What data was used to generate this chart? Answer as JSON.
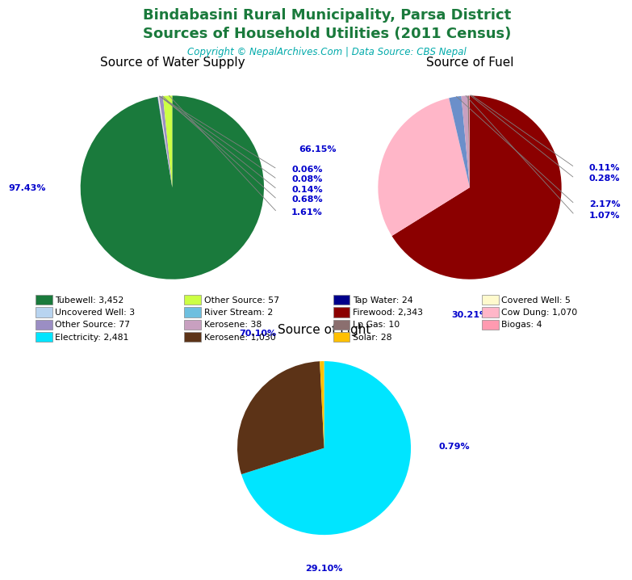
{
  "title_line1": "Bindabasini Rural Municipality, Parsa District",
  "title_line2": "Sources of Household Utilities (2011 Census)",
  "title_color": "#1a7a3c",
  "copyright_text": "Copyright © NepalArchives.Com | Data Source: CBS Nepal",
  "copyright_color": "#00aaaa",
  "water_title": "Source of Water Supply",
  "w_sizes": [
    3452,
    2,
    3,
    5,
    24,
    57
  ],
  "w_colors": [
    "#1a7a3c",
    "#00008b",
    "#b8d4f0",
    "#fffacd",
    "#9b8ec4",
    "#ccff44"
  ],
  "w_pct_labels": [
    "97.43%",
    "0.06%",
    "0.08%",
    "0.14%",
    "0.68%",
    "1.61%"
  ],
  "fuel_title": "Source of Fuel",
  "f_sizes": [
    2343,
    1070,
    77,
    38,
    10,
    4
  ],
  "f_colors": [
    "#8b0000",
    "#ffb6c8",
    "#6b8fca",
    "#c8a0c0",
    "#8b6f6f",
    "#ff9ab0"
  ],
  "f_pct_labels": [
    "66.15%",
    "30.21%",
    "2.17%",
    "1.07%",
    "0.28%",
    "0.11%"
  ],
  "light_title": "Source of Light",
  "l_sizes": [
    2481,
    1030,
    28
  ],
  "l_colors": [
    "#00e5ff",
    "#5c3317",
    "#ffc000"
  ],
  "l_pct_labels": [
    "70.10%",
    "29.10%",
    "0.79%"
  ],
  "legend_rows": [
    [
      [
        "Tubewell: 3,452",
        "#1a7a3c"
      ],
      [
        "Other Source: 57",
        "#ccff44"
      ],
      [
        "Tap Water: 24",
        "#00008b"
      ],
      [
        "Covered Well: 5",
        "#fffacd"
      ]
    ],
    [
      [
        "Uncovered Well: 3",
        "#b8d4f0"
      ],
      [
        "River Stream: 2",
        "#6dbfdf"
      ],
      [
        "Firewood: 2,343",
        "#8b0000"
      ],
      [
        "Cow Dung: 1,070",
        "#ffb6c8"
      ]
    ],
    [
      [
        "Other Source: 77",
        "#9b8ec4"
      ],
      [
        "Kerosene: 38",
        "#c8a0c0"
      ],
      [
        "Lp Gas: 10",
        "#8b6f6f"
      ],
      [
        "Biogas: 4",
        "#ff9ab0"
      ]
    ],
    [
      [
        "Electricity: 2,481",
        "#00e5ff"
      ],
      [
        "Kerosene: 1,030",
        "#5c3317"
      ],
      [
        "Solar: 28",
        "#ffc000"
      ],
      null
    ]
  ]
}
